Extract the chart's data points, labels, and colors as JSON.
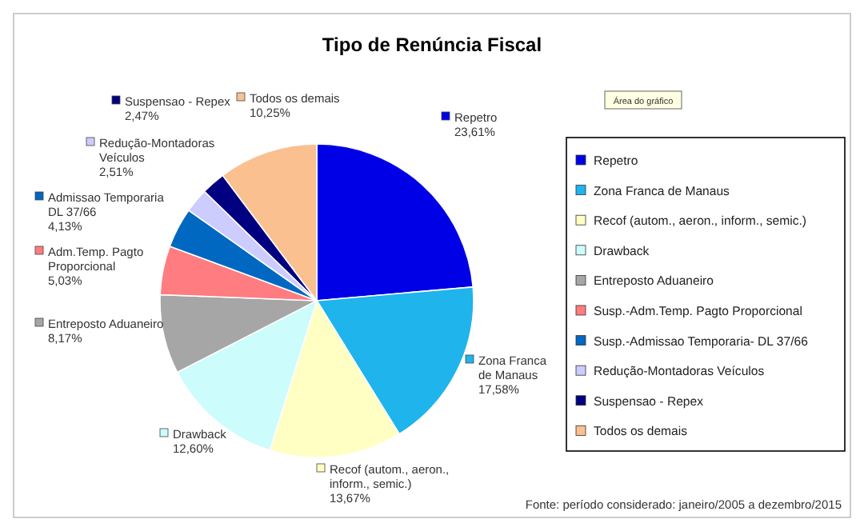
{
  "chart_data": {
    "type": "pie",
    "title": "Tipo de Renúncia Fiscal",
    "categories": [
      "Repetro",
      "Zona Franca de Manaus",
      "Recof (autom., aeron., inform., semic.)",
      "Drawback",
      "Entreposto Aduaneiro",
      "Susp.-Adm.Temp. Pagto Proporcional",
      "Susp.-Admissao Temporaria- DL 37/66",
      "Redução-Montadoras Veículos",
      "Suspensao - Repex",
      "Todos os demais"
    ],
    "values": [
      23.61,
      17.58,
      13.67,
      12.6,
      8.17,
      5.03,
      4.13,
      2.51,
      2.47,
      10.25
    ],
    "colors": [
      "#0000e6",
      "#1fb4ec",
      "#ffffc4",
      "#ccfcfc",
      "#a6a6a6",
      "#ff7c80",
      "#0068c0",
      "#ccccff",
      "#000080",
      "#fac090"
    ],
    "value_labels": [
      "Repetro\n23,61%",
      "Zona Franca\nde Manaus\n17,58%",
      "Recof (autom., aeron.,\ninform., semic.)\n13,67%",
      "Drawback\n12,60%",
      "Entreposto Aduaneiro\n8,17%",
      "Adm.Temp. Pagto\nProporcional\n5,03%",
      "Admissao Temporaria\nDL 37/66\n4,13%",
      "Redução-Montadoras\nVeículos\n2,51%",
      "Suspensao - Repex\n2,47%",
      "Todos os demais\n10,25%"
    ],
    "legend": "right",
    "annotations": [
      "Área do gráfico",
      "Fonte: período considerado: janeiro/2005 a dezembro/2015"
    ]
  }
}
